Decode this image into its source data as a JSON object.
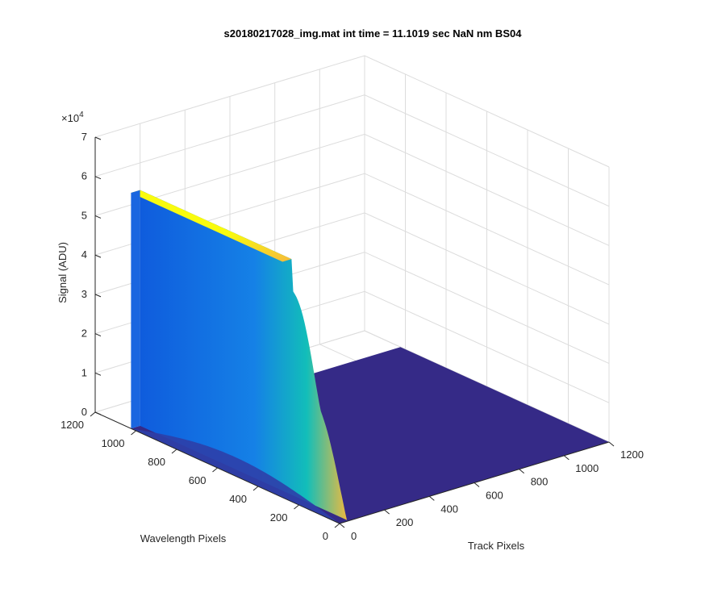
{
  "chart_data": {
    "type": "surface",
    "title": "s20180217028_img.mat int time = 11.1019 sec  NaN nm BS04",
    "xlabel": "Track Pixels",
    "ylabel": "Wavelength Pixels",
    "zlabel": "Signal (ADU)",
    "z_multiplier": "×10",
    "z_multiplier_exp": "4",
    "xlim": [
      0,
      1200
    ],
    "ylim": [
      0,
      1200
    ],
    "zlim": [
      0,
      70000
    ],
    "x_ticks": [
      "0",
      "200",
      "400",
      "600",
      "800",
      "1000",
      "1200"
    ],
    "y_ticks": [
      "0",
      "200",
      "400",
      "600",
      "800",
      "1000",
      "1200"
    ],
    "z_ticks": [
      "0",
      "1",
      "2",
      "3",
      "4",
      "5",
      "6",
      "7"
    ],
    "grid": true,
    "colormap": "parula",
    "surface": {
      "floor_value": 0,
      "signal_track_range": [
        0,
        40
      ],
      "signal_wavelength_range": [
        0,
        1024
      ],
      "saturation_value": 60000,
      "saturation_wavelength_range": [
        280,
        1024
      ]
    },
    "colors": {
      "floor": "#352a87",
      "low": "#0f5cdd",
      "mid": "#12beb9",
      "high": "#f5ba3b",
      "top": "#f9fb0e"
    }
  }
}
